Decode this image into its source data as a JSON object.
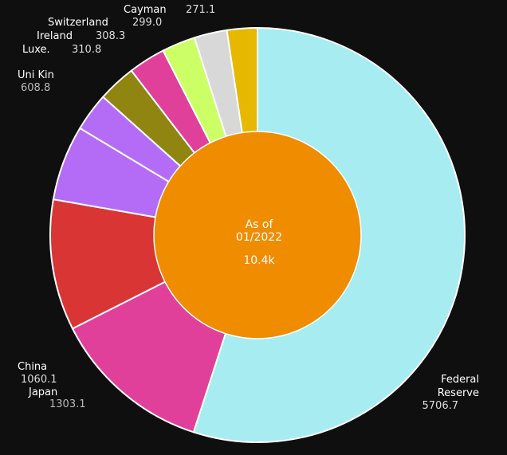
{
  "chart_data": {
    "type": "pie",
    "variant": "donut",
    "title": "",
    "center_text": {
      "line1": "As of",
      "line2": "01/2022",
      "total": "10.4k"
    },
    "legend": "none",
    "slices": [
      {
        "label_lines": [
          "Federal",
          "Reserve"
        ],
        "value": 5706.7,
        "value_text": "5706.7",
        "color": "#a7ecf1"
      },
      {
        "label_lines": [
          "Japan"
        ],
        "value": 1303.1,
        "value_text": "1303.1",
        "color": "#e0409a"
      },
      {
        "label_lines": [
          "China"
        ],
        "value": 1060.1,
        "value_text": "1060.1",
        "color": "#d93535"
      },
      {
        "label_lines": [
          "Uni Kin"
        ],
        "value": 608.8,
        "value_text": "608.8",
        "color": "#b46cf7"
      },
      {
        "label_lines": [
          "Luxe."
        ],
        "value": 310.8,
        "value_text": "310.8",
        "color": "#b46cf7"
      },
      {
        "label_lines": [
          "Ireland"
        ],
        "value": 308.3,
        "value_text": "308.3",
        "color": "#8f8510"
      },
      {
        "label_lines": [
          "Switzerland"
        ],
        "value": 299.0,
        "value_text": "299.0",
        "color": "#e0409a"
      },
      {
        "label_lines": [
          "Cayman"
        ],
        "value": 271.1,
        "value_text": "271.1",
        "color": "#ccff66"
      },
      {
        "label_lines": [],
        "value": 265.0,
        "value_text": "",
        "color": "#d8d8d8"
      },
      {
        "label_lines": [],
        "value": 245.0,
        "value_text": "",
        "color": "#e6b800"
      }
    ],
    "colors": {
      "background": "#0f0f0f",
      "center_fill": "#f08c00",
      "slice_border": "#ffffff",
      "label_name": "#ffffff",
      "label_value": "#dddddd",
      "label_value_muted": "#bbbbbb"
    }
  }
}
